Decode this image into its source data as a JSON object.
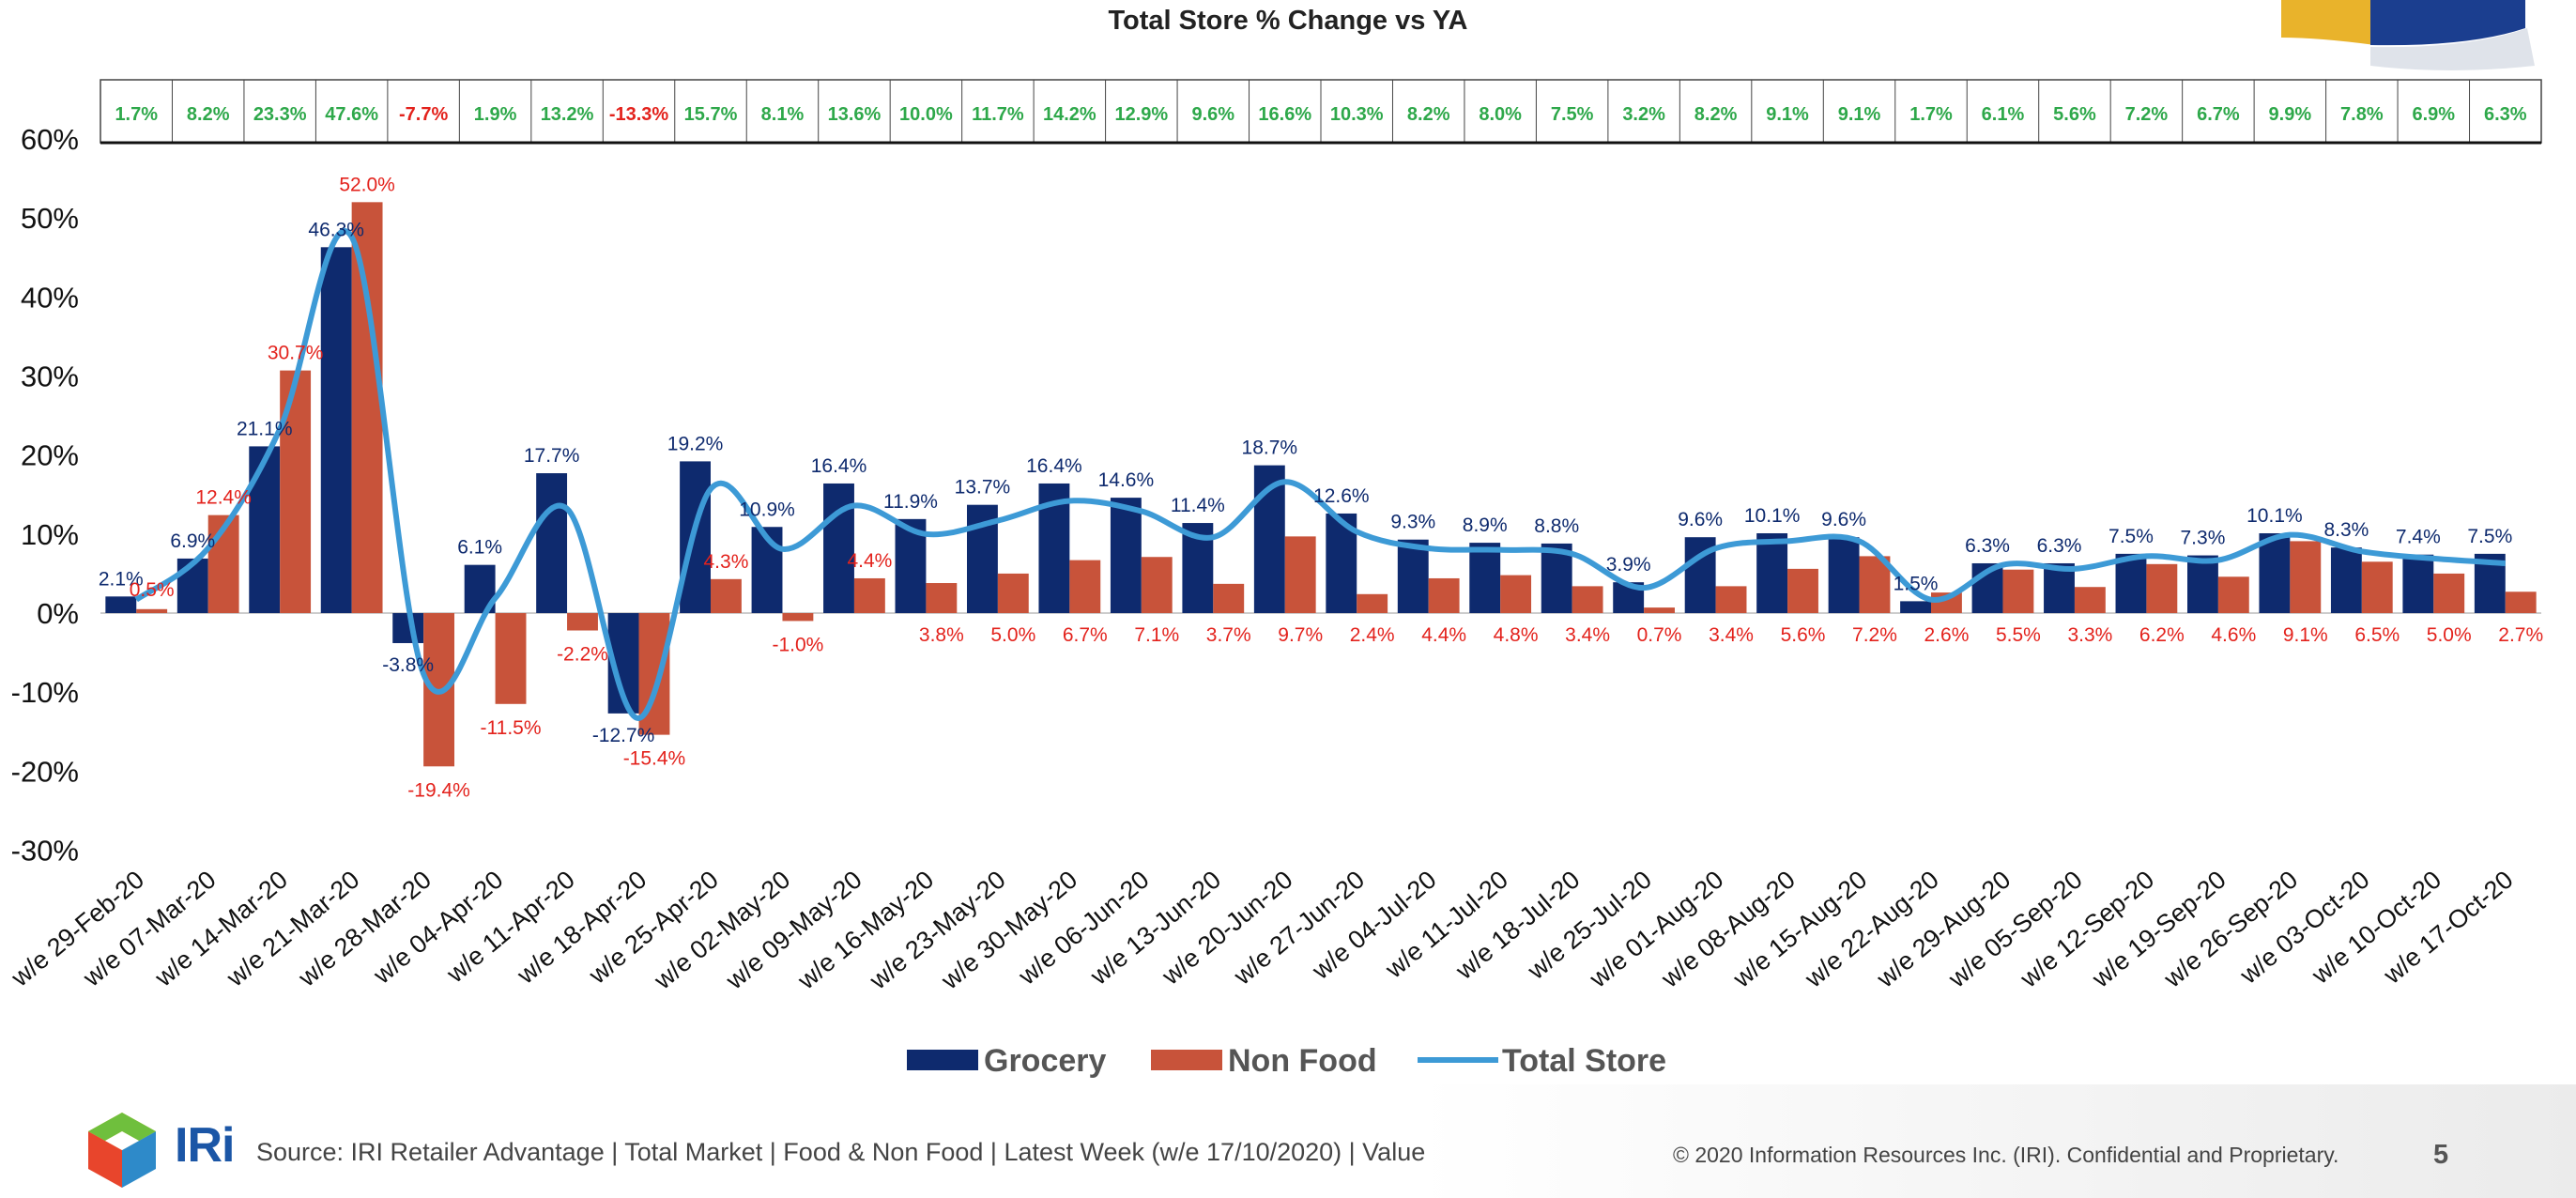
{
  "chart_data": {
    "type": "bar",
    "title": "Total Store % Change vs YA",
    "categories": [
      "w/e 29-Feb-20",
      "w/e 07-Mar-20",
      "w/e 14-Mar-20",
      "w/e 21-Mar-20",
      "w/e 28-Mar-20",
      "w/e 04-Apr-20",
      "w/e 11-Apr-20",
      "w/e 18-Apr-20",
      "w/e 25-Apr-20",
      "w/e 02-May-20",
      "w/e 09-May-20",
      "w/e 16-May-20",
      "w/e 23-May-20",
      "w/e 30-May-20",
      "w/e 06-Jun-20",
      "w/e 13-Jun-20",
      "w/e 20-Jun-20",
      "w/e 27-Jun-20",
      "w/e 04-Jul-20",
      "w/e 11-Jul-20",
      "w/e 18-Jul-20",
      "w/e 25-Jul-20",
      "w/e 01-Aug-20",
      "w/e 08-Aug-20",
      "w/e 15-Aug-20",
      "w/e 22-Aug-20",
      "w/e 29-Aug-20",
      "w/e 05-Sep-20",
      "w/e 12-Sep-20",
      "w/e 19-Sep-20",
      "w/e 26-Sep-20",
      "w/e 03-Oct-20",
      "w/e 10-Oct-20",
      "w/e 17-Oct-20"
    ],
    "series": [
      {
        "name": "Grocery",
        "kind": "bar",
        "color": "#0e2a6e",
        "label_color": "#0e2a6e",
        "values": [
          2.1,
          6.9,
          21.1,
          46.3,
          -3.8,
          6.1,
          17.7,
          -12.7,
          19.2,
          10.9,
          16.4,
          11.9,
          13.7,
          16.4,
          14.6,
          11.4,
          18.7,
          12.6,
          9.3,
          8.9,
          8.8,
          3.9,
          9.6,
          10.1,
          9.6,
          1.5,
          6.3,
          6.3,
          7.5,
          7.3,
          10.1,
          8.3,
          7.4,
          7.5
        ],
        "labels": [
          "2.1%",
          "6.9%",
          "21.1%",
          "46.3%",
          "-3.8%",
          "6.1%",
          "17.7%",
          "-12.7%",
          "19.2%",
          "10.9%",
          "16.4%",
          "11.9%",
          "13.7%",
          "16.4%",
          "14.6%",
          "11.4%",
          "18.7%",
          "12.6%",
          "9.3%",
          "8.9%",
          "8.8%",
          "3.9%",
          "9.6%",
          "10.1%",
          "9.6%",
          "1.5%",
          "6.3%",
          "6.3%",
          "7.5%",
          "7.3%",
          "10.1%",
          "8.3%",
          "7.4%",
          "7.5%"
        ]
      },
      {
        "name": "Non Food",
        "kind": "bar",
        "color": "#c8533a",
        "label_color": "#e3221c",
        "values": [
          0.5,
          12.4,
          30.7,
          52.0,
          -19.4,
          -11.5,
          -2.2,
          -15.4,
          4.3,
          -1.0,
          4.4,
          3.8,
          5.0,
          6.7,
          7.1,
          3.7,
          9.7,
          2.4,
          4.4,
          4.8,
          3.4,
          0.7,
          3.4,
          5.6,
          7.2,
          2.6,
          5.5,
          3.3,
          6.2,
          4.6,
          9.1,
          6.5,
          5.0,
          2.7
        ],
        "labels": [
          "0.5%",
          "12.4%",
          "30.7%",
          "52.0%",
          "-19.4%",
          "-11.5%",
          "-2.2%",
          "-15.4%",
          "4.3%",
          "-1.0%",
          "4.4%",
          "3.8%",
          "5.0%",
          "6.7%",
          "7.1%",
          "3.7%",
          "9.7%",
          "2.4%",
          "4.4%",
          "4.8%",
          "3.4%",
          "0.7%",
          "3.4%",
          "5.6%",
          "7.2%",
          "2.6%",
          "5.5%",
          "3.3%",
          "6.2%",
          "4.6%",
          "9.1%",
          "6.5%",
          "5.0%",
          "2.7%"
        ]
      },
      {
        "name": "Total Store",
        "kind": "line",
        "color": "#3d9ad6",
        "values": [
          1.7,
          8.2,
          23.3,
          47.6,
          -7.7,
          1.9,
          13.2,
          -13.3,
          15.7,
          8.1,
          13.6,
          10.0,
          11.7,
          14.2,
          12.9,
          9.6,
          16.6,
          10.3,
          8.2,
          8.0,
          7.5,
          3.2,
          8.2,
          9.1,
          9.1,
          1.7,
          6.1,
          5.6,
          7.2,
          6.7,
          9.9,
          7.8,
          6.9,
          6.3
        ],
        "labels": [
          "1.7%",
          "8.2%",
          "23.3%",
          "47.6%",
          "-7.7%",
          "1.9%",
          "13.2%",
          "-13.3%",
          "15.7%",
          "8.1%",
          "13.6%",
          "10.0%",
          "11.7%",
          "14.2%",
          "12.9%",
          "9.6%",
          "16.6%",
          "10.3%",
          "8.2%",
          "8.0%",
          "7.5%",
          "3.2%",
          "8.2%",
          "9.1%",
          "9.1%",
          "1.7%",
          "6.1%",
          "5.6%",
          "7.2%",
          "6.7%",
          "9.9%",
          "7.8%",
          "6.9%",
          "6.3%"
        ]
      }
    ],
    "positive_table_color": "#2ea84a",
    "negative_table_color": "#e3221c",
    "ylim": [
      -30,
      60
    ],
    "yticks": [
      60,
      50,
      40,
      30,
      20,
      10,
      0,
      -10,
      -20,
      -30
    ],
    "ytick_labels": [
      "60%",
      "50%",
      "40%",
      "30%",
      "20%",
      "10%",
      "0%",
      "-10%",
      "-20%",
      "-30%"
    ],
    "legend_position": "bottom",
    "grid": false
  },
  "footer": {
    "logo_text": "IRi",
    "source": "Source: IRI Retailer Advantage | Total Market | Food & Non Food | Latest Week (w/e 17/10/2020) | Value",
    "copyright": "© 2020 Information Resources Inc. (IRI). Confidential and Proprietary.",
    "page_number": "5"
  }
}
